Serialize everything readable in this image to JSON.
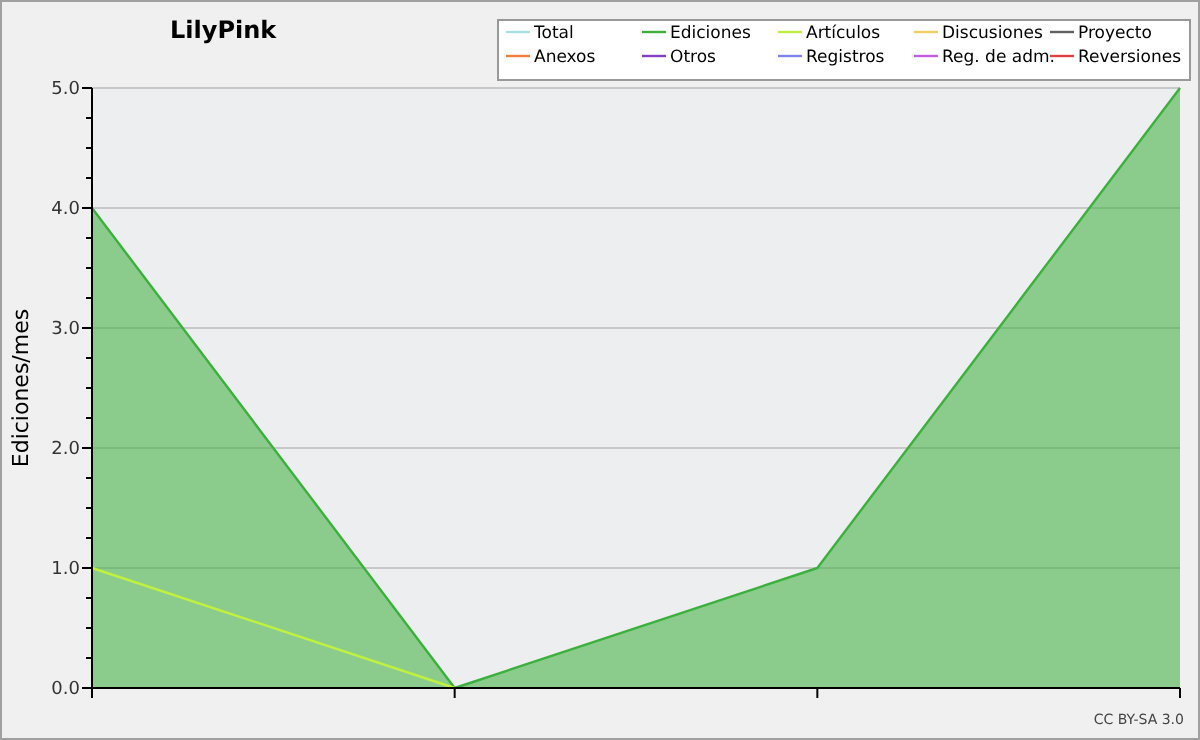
{
  "chart_data": {
    "type": "area",
    "title": "LilyPink",
    "ylabel": "Ediciones/mes",
    "categories": [
      null,
      null,
      null,
      null
    ],
    "series": [
      {
        "name": "Total",
        "color": "#a8e0e0",
        "type": "line",
        "values": [
          null,
          null,
          null,
          null
        ]
      },
      {
        "name": "Ediciones",
        "color": "#3cb03c",
        "values": [
          4,
          0,
          1,
          5
        ]
      },
      {
        "name": "Artículos",
        "color": "#c0f040",
        "type": "line",
        "values": [
          1,
          0,
          null,
          null
        ]
      },
      {
        "name": "Discusiones",
        "color": "#f0d060",
        "type": "line",
        "values": [
          null,
          null,
          null,
          null
        ]
      },
      {
        "name": "Proyecto",
        "color": "#606060",
        "type": "line",
        "values": [
          null,
          null,
          null,
          null
        ]
      },
      {
        "name": "Anexos",
        "color": "#f08040",
        "type": "line",
        "values": [
          null,
          null,
          null,
          null
        ]
      },
      {
        "name": "Otros",
        "color": "#8040c0",
        "type": "line",
        "values": [
          null,
          null,
          null,
          null
        ]
      },
      {
        "name": "Registros",
        "color": "#8080f0",
        "type": "line",
        "values": [
          null,
          null,
          null,
          null
        ]
      },
      {
        "name": "Reg. de adm.",
        "color": "#c060e0",
        "type": "line",
        "values": [
          null,
          null,
          null,
          null
        ]
      },
      {
        "name": "Reversiones",
        "color": "#e04040",
        "type": "line",
        "values": [
          null,
          null,
          null,
          null
        ]
      }
    ],
    "ylim": [
      0,
      5
    ],
    "yticks": [
      {
        "value": 0,
        "label": "0.0"
      },
      {
        "value": 0.25,
        "label": null
      },
      {
        "value": 0.5,
        "label": null
      },
      {
        "value": 0.75,
        "label": null
      },
      {
        "value": 1,
        "label": "1.0"
      },
      {
        "value": 1.25,
        "label": null
      },
      {
        "value": 1.5,
        "label": null
      },
      {
        "value": 1.75,
        "label": null
      },
      {
        "value": 2,
        "label": "2.0"
      },
      {
        "value": 2.25,
        "label": null
      },
      {
        "value": 2.5,
        "label": null
      },
      {
        "value": 2.75,
        "label": null
      },
      {
        "value": 3,
        "label": "3.0"
      },
      {
        "value": 3.25,
        "label": null
      },
      {
        "value": 3.5,
        "label": null
      },
      {
        "value": 3.75,
        "label": null
      },
      {
        "value": 4,
        "label": "4.0"
      },
      {
        "value": 4.25,
        "label": null
      },
      {
        "value": 4.5,
        "label": null
      },
      {
        "value": 4.75,
        "label": null
      },
      {
        "value": 5,
        "label": "5.0"
      }
    ],
    "grid": "y",
    "legend": "top right",
    "marker": "none",
    "annotations": [
      "CC BY-SA 3.0"
    ]
  }
}
